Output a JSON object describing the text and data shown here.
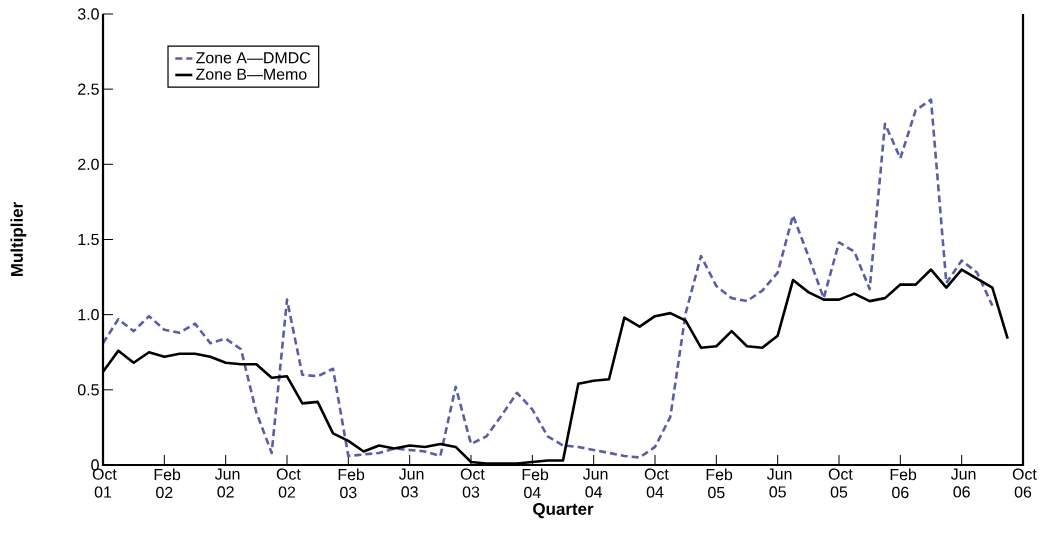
{
  "chart_data": {
    "type": "line",
    "xlabel": "Quarter",
    "ylabel": "Multiplier",
    "x": [
      "2001-10",
      "2001-11",
      "2001-12",
      "2002-01",
      "2002-02",
      "2002-03",
      "2002-04",
      "2002-05",
      "2002-06",
      "2002-07",
      "2002-08",
      "2002-09",
      "2002-10",
      "2002-11",
      "2002-12",
      "2003-01",
      "2003-02",
      "2003-03",
      "2003-04",
      "2003-05",
      "2003-06",
      "2003-07",
      "2003-08",
      "2003-09",
      "2003-10",
      "2003-11",
      "2003-12",
      "2004-01",
      "2004-02",
      "2004-03",
      "2004-04",
      "2004-05",
      "2004-06",
      "2004-07",
      "2004-08",
      "2004-09",
      "2004-10",
      "2004-11",
      "2004-12",
      "2005-01",
      "2005-02",
      "2005-03",
      "2005-04",
      "2005-05",
      "2005-06",
      "2005-07",
      "2005-08",
      "2005-09",
      "2005-10",
      "2005-11",
      "2005-12",
      "2006-01",
      "2006-02",
      "2006-03",
      "2006-04",
      "2006-05",
      "2006-06",
      "2006-07",
      "2006-08",
      "2006-09"
    ],
    "series": [
      {
        "name": "Zone A—DMDC",
        "color": "#5b5ea6",
        "line_style": "dashed",
        "values": [
          0.81,
          0.97,
          0.89,
          0.99,
          0.9,
          0.88,
          0.94,
          0.81,
          0.84,
          0.77,
          0.35,
          0.08,
          1.1,
          0.6,
          0.59,
          0.64,
          0.06,
          0.07,
          0.08,
          0.11,
          0.1,
          0.09,
          0.06,
          0.52,
          0.14,
          0.19,
          0.33,
          0.48,
          0.37,
          0.19,
          0.13,
          0.12,
          0.1,
          0.08,
          0.06,
          0.05,
          0.12,
          0.32,
          1.01,
          1.39,
          1.19,
          1.11,
          1.09,
          1.16,
          1.28,
          1.66,
          1.39,
          1.11,
          1.48,
          1.42,
          1.17,
          2.27,
          2.04,
          2.36,
          2.43,
          1.21,
          1.36,
          1.28,
          1.06,
          null
        ]
      },
      {
        "name": "Zone B—Memo",
        "color": "#000000",
        "line_style": "solid",
        "values": [
          0.62,
          0.76,
          0.68,
          0.75,
          0.72,
          0.74,
          0.74,
          0.72,
          0.68,
          0.67,
          0.67,
          0.58,
          0.59,
          0.41,
          0.42,
          0.21,
          0.16,
          0.09,
          0.13,
          0.11,
          0.13,
          0.12,
          0.14,
          0.12,
          0.02,
          0.01,
          0.01,
          0.01,
          0.02,
          0.03,
          0.03,
          0.54,
          0.56,
          0.57,
          0.98,
          0.92,
          0.99,
          1.01,
          0.96,
          0.78,
          0.79,
          0.89,
          0.79,
          0.78,
          0.86,
          1.23,
          1.15,
          1.1,
          1.1,
          1.14,
          1.09,
          1.11,
          1.2,
          1.2,
          1.3,
          1.18,
          1.3,
          1.24,
          1.18,
          0.84
        ]
      }
    ],
    "xlim": [
      "2001-10",
      "2006-10"
    ],
    "xticks": [
      {
        "value": "2001-10",
        "label": "Oct 01"
      },
      {
        "value": "2002-02",
        "label": "Feb 02"
      },
      {
        "value": "2002-06",
        "label": "Jun 02"
      },
      {
        "value": "2002-10",
        "label": "Oct 02"
      },
      {
        "value": "2003-02",
        "label": "Feb 03"
      },
      {
        "value": "2003-06",
        "label": "Jun 03"
      },
      {
        "value": "2003-10",
        "label": "Oct 03"
      },
      {
        "value": "2004-02",
        "label": "Feb 04"
      },
      {
        "value": "2004-06",
        "label": "Jun 04"
      },
      {
        "value": "2004-10",
        "label": "Oct 04"
      },
      {
        "value": "2005-02",
        "label": "Feb 05"
      },
      {
        "value": "2005-06",
        "label": "Jun 05"
      },
      {
        "value": "2005-10",
        "label": "Oct 05"
      },
      {
        "value": "2006-02",
        "label": "Feb 06"
      },
      {
        "value": "2006-06",
        "label": "Jun 06"
      },
      {
        "value": "2006-10",
        "label": "Oct 06"
      }
    ],
    "ylim": [
      0,
      3
    ],
    "yticks": [
      0,
      0.5,
      {
        "value": 1,
        "label": "1.0"
      },
      1.5,
      {
        "value": 2,
        "label": "2.0"
      },
      2.5,
      {
        "value": 3,
        "label": "3.0"
      }
    ],
    "legend": "top left"
  }
}
